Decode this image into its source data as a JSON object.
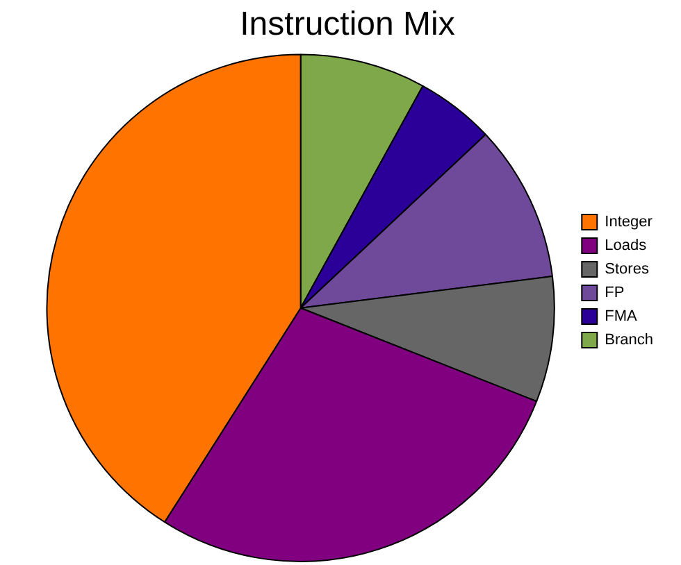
{
  "chart_data": {
    "type": "pie",
    "title": "Instruction Mix",
    "categories": [
      "Integer",
      "Loads",
      "Stores",
      "FP",
      "FMA",
      "Branch"
    ],
    "values": [
      41,
      28,
      8,
      10,
      5,
      8
    ],
    "colors": [
      "#ff7300",
      "#800080",
      "#666666",
      "#6f4a9a",
      "#2a0099",
      "#7fa84a"
    ],
    "legend": "right"
  }
}
